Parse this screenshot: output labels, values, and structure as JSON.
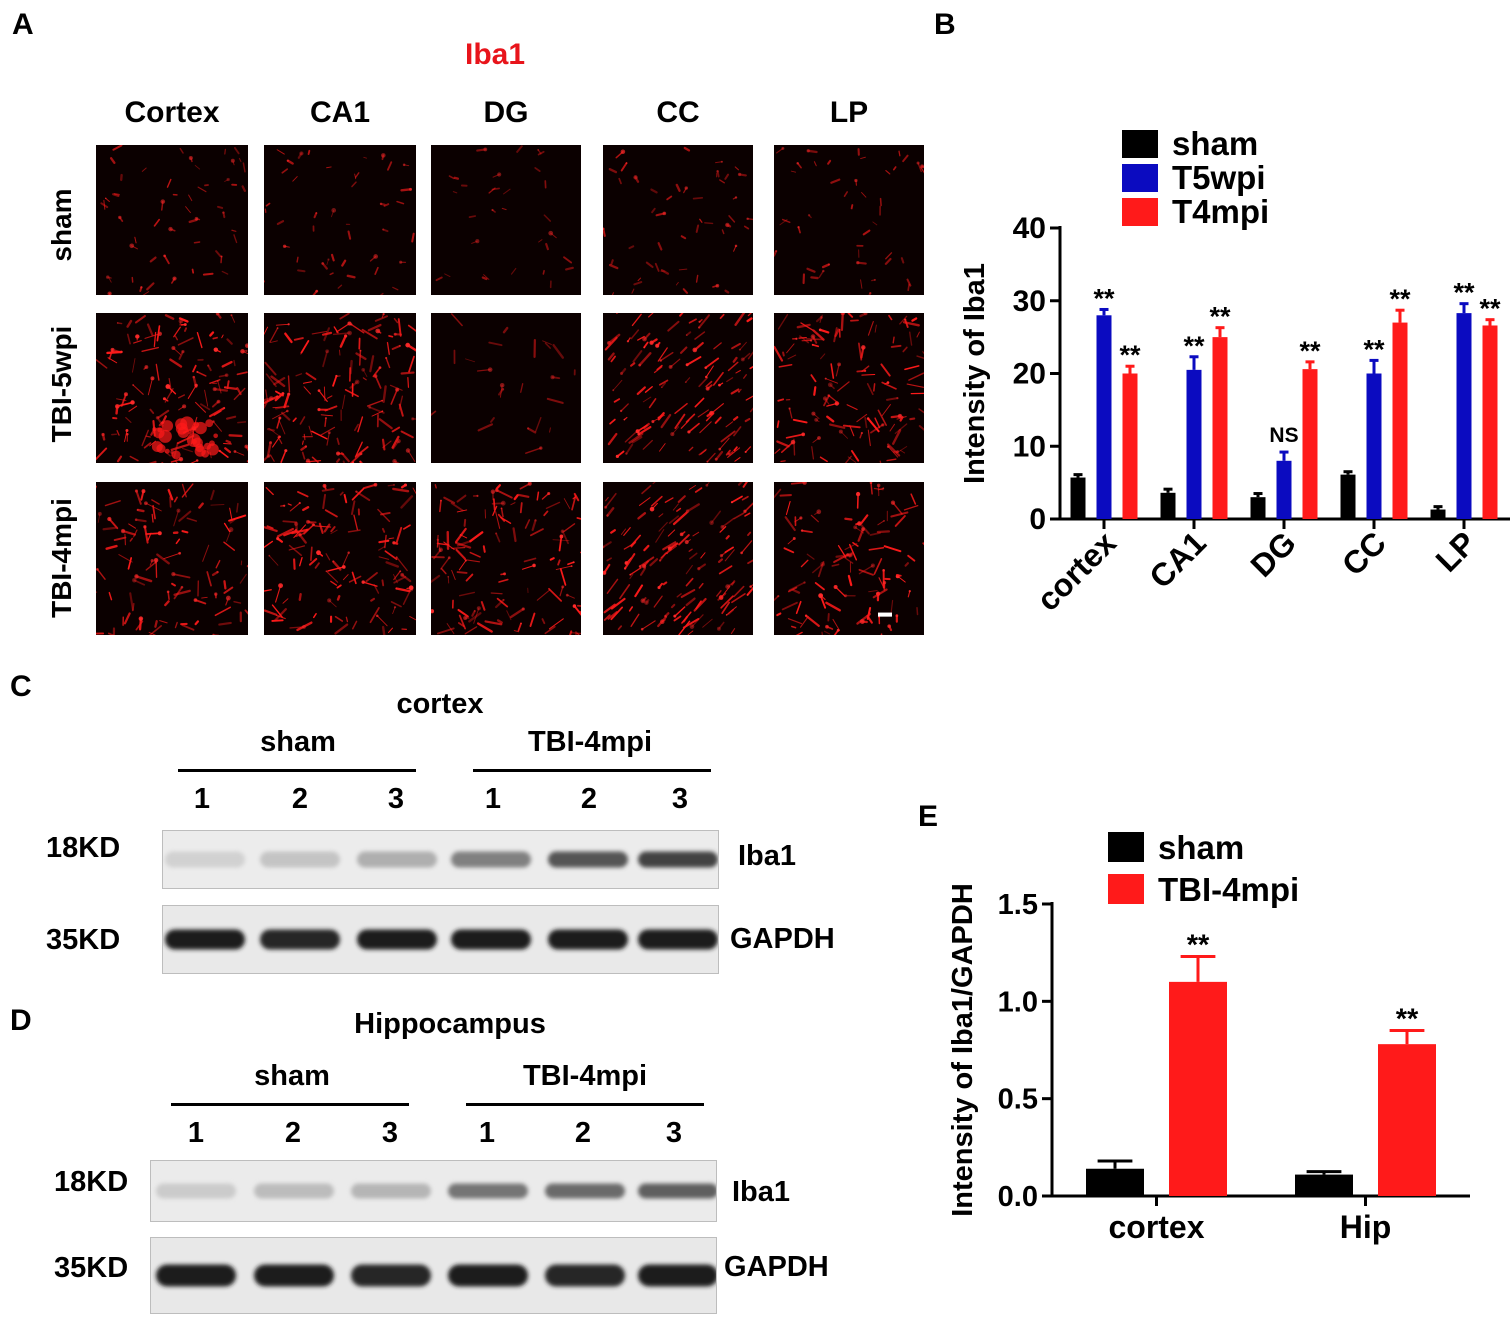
{
  "panels": {
    "a": "A",
    "b": "B",
    "c": "C",
    "d": "D",
    "e": "E"
  },
  "panel_a": {
    "stain": "Iba1",
    "stain_color": "#e8141b",
    "regions": [
      "Cortex",
      "CA1",
      "DG",
      "CC",
      "LP"
    ],
    "groups": [
      "sham",
      "TBI-5wpi",
      "TBI-4mpi"
    ]
  },
  "panel_c": {
    "region": "cortex",
    "groups": [
      "sham",
      "TBI-4mpi"
    ],
    "lanes": [
      "1",
      "2",
      "3",
      "1",
      "2",
      "3"
    ],
    "markers": [
      "18KD",
      "35KD"
    ],
    "proteins": [
      "Iba1",
      "GAPDH"
    ]
  },
  "panel_d": {
    "region": "Hippocampus",
    "groups": [
      "sham",
      "TBI-4mpi"
    ],
    "lanes": [
      "1",
      "2",
      "3",
      "1",
      "2",
      "3"
    ],
    "markers": [
      "18KD",
      "35KD"
    ],
    "proteins": [
      "Iba1",
      "GAPDH"
    ]
  },
  "chart_data": [
    {
      "type": "bar",
      "ylabel": "Intensity of Iba1",
      "ylim": [
        0,
        40
      ],
      "yticks": [
        0,
        10,
        20,
        30,
        40
      ],
      "categories": [
        "cortex",
        "CA1",
        "DG",
        "CC",
        "LP"
      ],
      "legend_position": "top",
      "series": [
        {
          "name": "sham",
          "color": "#000000",
          "values": [
            5.7,
            3.6,
            3.0,
            6.1,
            1.3
          ],
          "errors": [
            0.4,
            0.5,
            0.5,
            0.4,
            0.4
          ]
        },
        {
          "name": "T5wpi",
          "color": "#0b0bc0",
          "values": [
            28.0,
            20.5,
            8.0,
            20.0,
            28.3
          ],
          "errors": [
            0.8,
            1.8,
            1.2,
            1.8,
            1.3
          ]
        },
        {
          "name": "T4mpi",
          "color": "#ff1a1a",
          "values": [
            20.0,
            25.0,
            20.6,
            27.0,
            26.6
          ],
          "errors": [
            1.0,
            1.3,
            1.0,
            1.7,
            0.8
          ]
        }
      ],
      "annotations": [
        {
          "category": "cortex",
          "series": "T5wpi",
          "text": "**"
        },
        {
          "category": "cortex",
          "series": "T4mpi",
          "text": "**"
        },
        {
          "category": "CA1",
          "series": "T5wpi",
          "text": "**"
        },
        {
          "category": "CA1",
          "series": "T4mpi",
          "text": "**"
        },
        {
          "category": "DG",
          "series": "T5wpi",
          "text": "NS"
        },
        {
          "category": "DG",
          "series": "T4mpi",
          "text": "**"
        },
        {
          "category": "CC",
          "series": "T5wpi",
          "text": "**"
        },
        {
          "category": "CC",
          "series": "T4mpi",
          "text": "**"
        },
        {
          "category": "LP",
          "series": "T5wpi",
          "text": "**"
        },
        {
          "category": "LP",
          "series": "T4mpi",
          "text": "**"
        }
      ]
    },
    {
      "type": "bar",
      "ylabel": "Intensity of Iba1/GAPDH",
      "ylim": [
        0,
        1.5
      ],
      "yticks": [
        "0.0",
        "0.5",
        "1.0",
        "1.5"
      ],
      "categories": [
        "cortex",
        "Hip"
      ],
      "legend_position": "top",
      "series": [
        {
          "name": "sham",
          "color": "#000000",
          "values": [
            0.14,
            0.11
          ],
          "errors": [
            0.04,
            0.015
          ]
        },
        {
          "name": "TBI-4mpi",
          "color": "#ff1a1a",
          "values": [
            1.1,
            0.78
          ],
          "errors": [
            0.13,
            0.07
          ]
        }
      ],
      "annotations": [
        {
          "category": "cortex",
          "series": "TBI-4mpi",
          "text": "**"
        },
        {
          "category": "Hip",
          "series": "TBI-4mpi",
          "text": "**"
        }
      ]
    }
  ]
}
